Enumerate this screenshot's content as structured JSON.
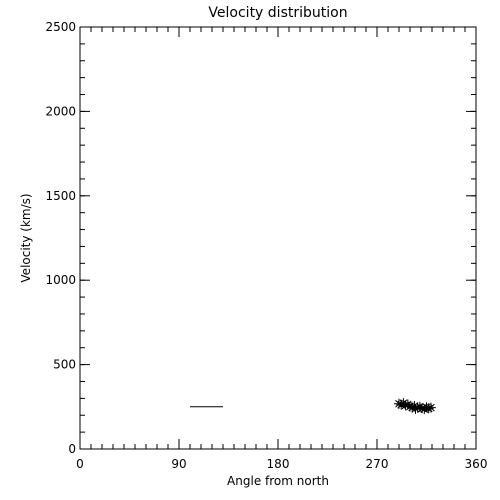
{
  "chart_data": {
    "type": "scatter",
    "title": "Velocity distribution",
    "xlabel": "Angle from north",
    "ylabel": "Velocity (km/s)",
    "xlim": [
      0,
      360
    ],
    "ylim": [
      0,
      2500
    ],
    "xticks": [
      0,
      90,
      180,
      270,
      360
    ],
    "yticks": [
      0,
      500,
      1000,
      1500,
      2000,
      2500
    ],
    "x_minor_step": 10,
    "y_minor_step": 100,
    "grid": false,
    "marker": "asterisk",
    "series": [
      {
        "points": [
          {
            "x": 290,
            "y": 268
          },
          {
            "x": 292,
            "y": 262
          },
          {
            "x": 294,
            "y": 271
          },
          {
            "x": 296,
            "y": 258
          },
          {
            "x": 298,
            "y": 264
          },
          {
            "x": 300,
            "y": 252
          },
          {
            "x": 302,
            "y": 246
          },
          {
            "x": 304,
            "y": 255
          },
          {
            "x": 305,
            "y": 238
          },
          {
            "x": 307,
            "y": 244
          },
          {
            "x": 309,
            "y": 250
          },
          {
            "x": 311,
            "y": 242
          },
          {
            "x": 313,
            "y": 236
          },
          {
            "x": 315,
            "y": 247
          },
          {
            "x": 317,
            "y": 241
          },
          {
            "x": 319,
            "y": 245
          }
        ]
      }
    ],
    "reference_line": {
      "x_start": 100,
      "x_end": 130,
      "y": 250
    }
  }
}
